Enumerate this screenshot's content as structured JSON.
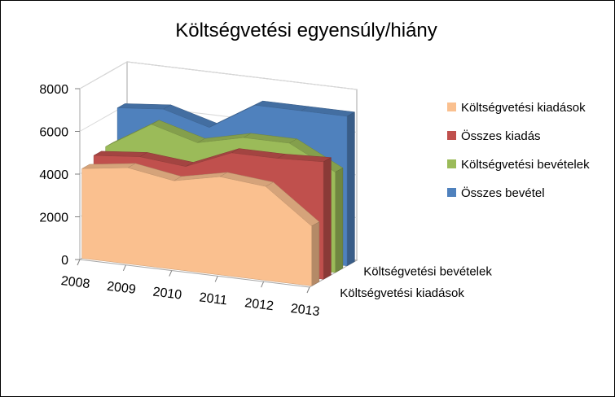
{
  "chart_data": {
    "type": "area",
    "title": "Költségvetési egyensúly/hiány",
    "categories": [
      "2008",
      "2009",
      "2010",
      "2011",
      "2012",
      "2013"
    ],
    "yticks": [
      0,
      2000,
      4000,
      6000,
      8000
    ],
    "ylim": [
      0,
      8000
    ],
    "depth_labels": [
      "Költségvetési bevételek",
      "Költségvetési kiadások"
    ],
    "legend_position": "right",
    "series": [
      {
        "name": "Költségvetési kiadások",
        "color": "#FAC08F",
        "values": [
          4200,
          4500,
          4150,
          4600,
          4400,
          2800
        ]
      },
      {
        "name": "Összes kiadás",
        "color": "#C0504D",
        "values": [
          4500,
          4700,
          4500,
          5400,
          5400,
          5500
        ]
      },
      {
        "name": "Költségvetési bevételek",
        "color": "#9BBB59",
        "values": [
          4600,
          5900,
          5300,
          5800,
          5800,
          4700
        ]
      },
      {
        "name": "Összes bevétel",
        "color": "#4F81BD",
        "values": [
          6100,
          6300,
          5700,
          7000,
          7000,
          7000
        ]
      }
    ]
  }
}
